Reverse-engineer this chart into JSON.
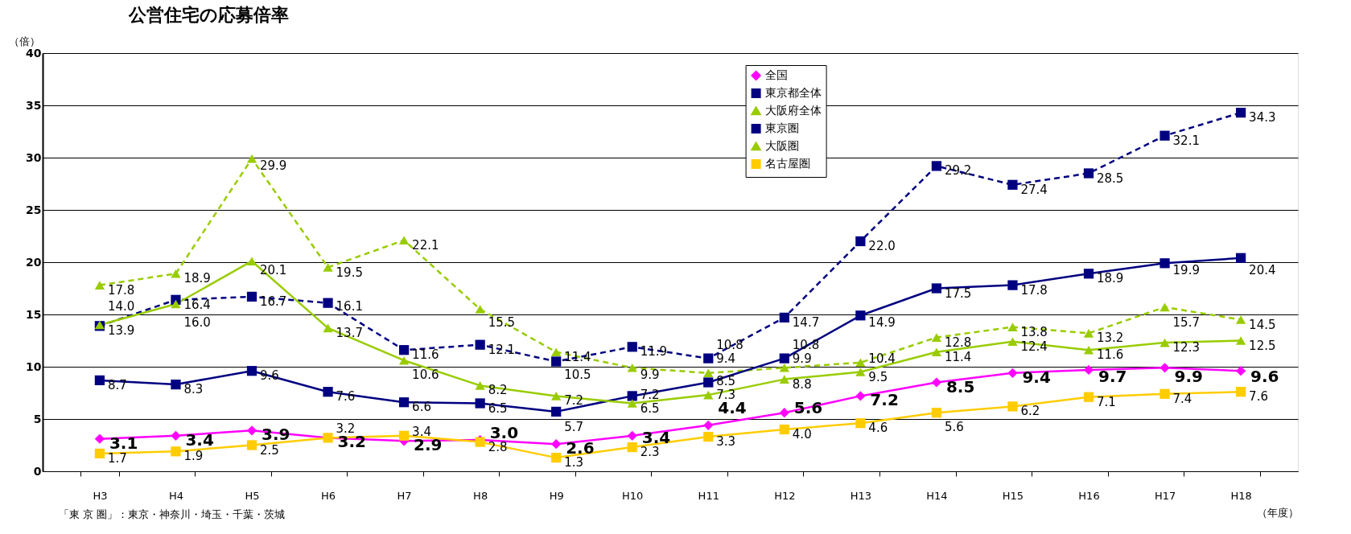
{
  "chart_data": {
    "type": "line",
    "title": "公営住宅の応募倍率",
    "ylabel": "（倍）",
    "xlabel": "（年度）",
    "categories": [
      "H3",
      "H4",
      "H5",
      "H6",
      "H7",
      "H8",
      "H9",
      "H10",
      "H11",
      "H12",
      "H13",
      "H14",
      "H15",
      "H16",
      "H17",
      "H18"
    ],
    "series": [
      {
        "name": "全国",
        "color": "#ff00ff",
        "marker": "diamond",
        "line_style": "solid",
        "values": [
          3.1,
          3.4,
          3.9,
          3.2,
          2.9,
          3.0,
          2.6,
          3.4,
          4.4,
          5.6,
          7.2,
          8.5,
          9.4,
          9.7,
          9.9,
          9.6
        ],
        "value_labels": [
          "3.1",
          "3.4",
          "3.9",
          "3.2",
          "2.9",
          "3.0",
          "2.6",
          "3.4",
          "4.4",
          "5.6",
          "7.2",
          "8.5",
          "9.4",
          "9.7",
          "9.9",
          "9.6"
        ]
      },
      {
        "name": "東京都全体",
        "color": "#000080",
        "marker": "square",
        "line_style": "dashed",
        "values": [
          13.9,
          16.4,
          16.7,
          16.1,
          11.6,
          12.1,
          10.5,
          11.9,
          10.8,
          14.7,
          22.0,
          29.2,
          27.4,
          28.5,
          32.1,
          34.3
        ],
        "value_labels": [
          "13.9",
          "16.4",
          "16.7",
          "16.1",
          "11.6",
          "12.1",
          "10.5",
          "11.9",
          "10.8",
          "14.7",
          "22.0",
          "29.2",
          "27.4",
          "28.5",
          "32.1",
          "34.3"
        ]
      },
      {
        "name": "大阪府全体",
        "color": "#99cc00",
        "marker": "triangle",
        "line_style": "dashed",
        "values": [
          17.8,
          18.9,
          29.9,
          19.5,
          22.1,
          15.5,
          11.4,
          9.9,
          9.4,
          9.9,
          10.4,
          12.8,
          13.8,
          13.2,
          15.7,
          14.5
        ],
        "value_labels": [
          "17.8",
          "18.9",
          "29.9",
          "19.5",
          "22.1",
          "15.5",
          "11.4",
          "9.9",
          "9.4",
          "9.9",
          "10.4",
          "12.8",
          "13.8",
          "13.2",
          "15.7",
          "14.5"
        ]
      },
      {
        "name": "東京圏",
        "color": "#000080",
        "marker": "square",
        "line_style": "solid",
        "values": [
          8.7,
          8.3,
          9.6,
          7.6,
          6.6,
          6.5,
          5.7,
          7.2,
          8.5,
          10.8,
          14.9,
          17.5,
          17.8,
          18.9,
          19.9,
          20.4
        ],
        "value_labels": [
          "8.7",
          "8.3",
          "9.6",
          "7.6",
          "6.6",
          "6.5",
          "5.7",
          "7.2",
          "8.5",
          "10.8",
          "14.9",
          "17.5",
          "17.8",
          "18.9",
          "19.9",
          "20.4"
        ]
      },
      {
        "name": "大阪圏",
        "color": "#99cc00",
        "marker": "triangle",
        "line_style": "solid",
        "values": [
          14.0,
          16.0,
          20.1,
          13.7,
          10.6,
          8.2,
          7.2,
          6.5,
          7.3,
          8.8,
          9.5,
          11.4,
          12.4,
          11.6,
          12.3,
          12.5
        ],
        "value_labels": [
          "14.0",
          "16.0",
          "20.1",
          "13.7",
          "10.6",
          "8.2",
          "7.2",
          "6.5",
          "7.3",
          "8.8",
          "9.5",
          "11.4",
          "12.4",
          "11.6",
          "12.3",
          "12.5"
        ]
      },
      {
        "name": "名古屋圏",
        "color": "#ffcc00",
        "marker": "square",
        "line_style": "solid",
        "values": [
          1.7,
          1.9,
          2.5,
          3.2,
          3.4,
          2.8,
          1.3,
          2.3,
          3.3,
          4.0,
          4.6,
          5.6,
          6.2,
          7.1,
          7.4,
          7.6
        ],
        "value_labels": [
          "1.7",
          "1.9",
          "2.5",
          "3.2",
          "3.4",
          "2.8",
          "1.3",
          "2.3",
          "3.3",
          "4.0",
          "4.6",
          "5.6",
          "6.2",
          "7.1",
          "7.4",
          "7.6"
        ]
      }
    ],
    "ylim": [
      0,
      40
    ],
    "yticks": [
      0,
      5,
      10,
      15,
      20,
      25,
      30,
      35,
      40
    ],
    "grid": "y",
    "legend": "top right",
    "annotations": [
      "「東 京 圏」：東京・神奈川・埼玉・千葉・茨城"
    ]
  }
}
